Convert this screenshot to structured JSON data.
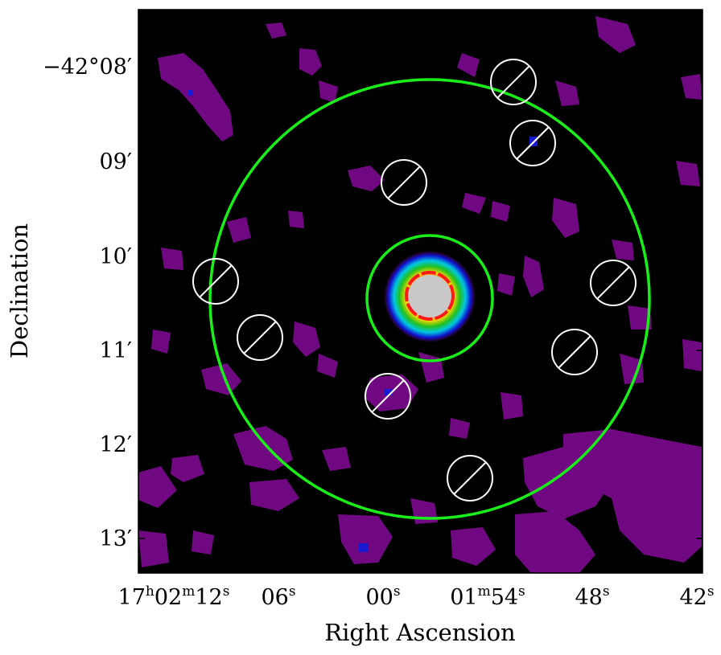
{
  "figure": {
    "xlabel": "Right Ascension",
    "ylabel": "Declination",
    "x_ticks": [
      {
        "main": "17",
        "sup1": "h",
        "mid": "02",
        "sup2": "m",
        "end": "12",
        "sup3": "s"
      },
      {
        "main": "06",
        "sup3": "s"
      },
      {
        "main": "00",
        "sup3": "s"
      },
      {
        "main": "01",
        "sup2": "m",
        "end": "54",
        "sup3": "s"
      },
      {
        "main": "48",
        "sup3": "s"
      },
      {
        "main": "42",
        "sup3": "s"
      }
    ],
    "y_ticks": [
      {
        "text": "−42°08′"
      },
      {
        "text": "09′"
      },
      {
        "text": "10′"
      },
      {
        "text": "11′"
      },
      {
        "text": "12′"
      },
      {
        "text": "13′"
      }
    ],
    "colors": {
      "background": "#000000",
      "emission": "#8a0c9e",
      "annulus": "#19f019",
      "source": "#ff1a1a",
      "background_regions": "#ffffff",
      "saturated": "#c8c8c8"
    },
    "regions": {
      "source_aperture": "red circle",
      "annulus": "green circles",
      "excluded": "white hatched circles"
    }
  }
}
